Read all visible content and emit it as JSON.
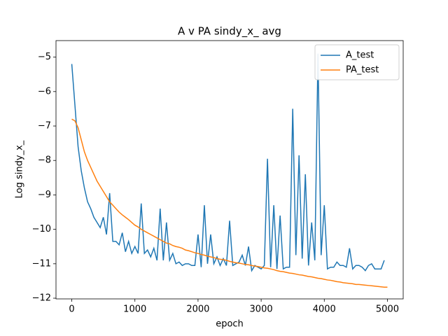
{
  "chart_data": {
    "type": "line",
    "title": "A v PA sindy_x_ avg",
    "xlabel": "epoch",
    "ylabel": "Log sindy_x_",
    "x": [
      0,
      50,
      100,
      150,
      200,
      250,
      300,
      350,
      400,
      450,
      500,
      550,
      600,
      650,
      700,
      750,
      800,
      850,
      900,
      950,
      1000,
      1050,
      1100,
      1150,
      1200,
      1250,
      1300,
      1350,
      1400,
      1450,
      1500,
      1550,
      1600,
      1650,
      1700,
      1750,
      1800,
      1850,
      1900,
      1950,
      2000,
      2050,
      2100,
      2150,
      2200,
      2250,
      2300,
      2350,
      2400,
      2450,
      2500,
      2550,
      2600,
      2650,
      2700,
      2750,
      2800,
      2850,
      2900,
      2950,
      3000,
      3050,
      3100,
      3150,
      3200,
      3250,
      3300,
      3350,
      3400,
      3450,
      3500,
      3550,
      3600,
      3650,
      3700,
      3750,
      3800,
      3850,
      3900,
      3950,
      4000,
      4050,
      4100,
      4150,
      4200,
      4250,
      4300,
      4350,
      4400,
      4450,
      4500,
      4550,
      4600,
      4650,
      4700,
      4750,
      4800,
      4850,
      4900,
      4950,
      5000
    ],
    "series": [
      {
        "name": "A_test",
        "color": "#1f77b4",
        "values": [
          -5.2,
          -6.4,
          -7.6,
          -8.3,
          -8.8,
          -9.2,
          -9.4,
          -9.65,
          -9.8,
          -9.95,
          -9.65,
          -10.15,
          -8.95,
          -10.35,
          -10.35,
          -10.45,
          -10.1,
          -10.65,
          -10.35,
          -10.7,
          -10.5,
          -10.7,
          -9.25,
          -10.7,
          -10.6,
          -10.8,
          -10.55,
          -10.9,
          -9.4,
          -10.9,
          -9.8,
          -10.9,
          -10.7,
          -11.0,
          -10.95,
          -11.05,
          -11.0,
          -11.0,
          -11.05,
          -11.05,
          -10.15,
          -11.1,
          -9.3,
          -11.0,
          -10.15,
          -11.0,
          -10.8,
          -11.05,
          -10.85,
          -11.05,
          -9.75,
          -11.05,
          -11.0,
          -10.95,
          -10.75,
          -11.05,
          -10.5,
          -11.2,
          -11.05,
          -11.1,
          -11.15,
          -11.05,
          -7.95,
          -11.1,
          -9.3,
          -11.15,
          -9.6,
          -11.15,
          -11.1,
          -11.1,
          -6.5,
          -10.75,
          -7.85,
          -10.85,
          -8.4,
          -11.05,
          -9.8,
          -10.9,
          -4.9,
          -10.75,
          -9.3,
          -11.15,
          -11.1,
          -11.1,
          -10.95,
          -11.05,
          -11.05,
          -11.1,
          -10.55,
          -11.15,
          -11.05,
          -11.05,
          -11.1,
          -11.2,
          -11.05,
          -11.0,
          -11.15,
          -11.15,
          -11.15,
          -10.9,
          null
        ]
      },
      {
        "name": "PA_test",
        "color": "#ff7f0e",
        "values": [
          -6.8,
          -6.85,
          -7.05,
          -7.4,
          -7.75,
          -8.0,
          -8.2,
          -8.4,
          -8.6,
          -8.75,
          -8.9,
          -9.05,
          -9.2,
          -9.3,
          -9.4,
          -9.5,
          -9.58,
          -9.65,
          -9.72,
          -9.8,
          -9.88,
          -9.93,
          -10.0,
          -10.05,
          -10.1,
          -10.15,
          -10.2,
          -10.25,
          -10.3,
          -10.35,
          -10.4,
          -10.42,
          -10.47,
          -10.5,
          -10.52,
          -10.55,
          -10.6,
          -10.62,
          -10.65,
          -10.68,
          -10.7,
          -10.73,
          -10.75,
          -10.78,
          -10.8,
          -10.82,
          -10.85,
          -10.87,
          -10.88,
          -10.9,
          -10.93,
          -10.95,
          -10.97,
          -10.98,
          -11.0,
          -11.02,
          -11.03,
          -11.05,
          -11.07,
          -11.08,
          -11.1,
          -11.12,
          -11.13,
          -11.15,
          -11.17,
          -11.2,
          -11.22,
          -11.23,
          -11.25,
          -11.27,
          -11.28,
          -11.3,
          -11.32,
          -11.33,
          -11.35,
          -11.37,
          -11.38,
          -11.4,
          -11.42,
          -11.43,
          -11.45,
          -11.47,
          -11.48,
          -11.5,
          -11.52,
          -11.53,
          -11.55,
          -11.56,
          -11.57,
          -11.58,
          -11.6,
          -11.6,
          -11.61,
          -11.62,
          -11.63,
          -11.64,
          -11.65,
          -11.66,
          -11.67,
          -11.68,
          -11.68
        ]
      }
    ],
    "xlim": [
      -250,
      5250
    ],
    "ylim": [
      -12.02,
      -4.52
    ],
    "xticks": [
      0,
      1000,
      2000,
      3000,
      4000,
      5000
    ],
    "yticks": [
      {
        "value": -12,
        "label": "−12"
      },
      {
        "value": -11,
        "label": "−11"
      },
      {
        "value": -10,
        "label": "−10"
      },
      {
        "value": -9,
        "label": "−9"
      },
      {
        "value": -8,
        "label": "−8"
      },
      {
        "value": -7,
        "label": "−7"
      },
      {
        "value": -6,
        "label": "−6"
      },
      {
        "value": -5,
        "label": "−5"
      }
    ],
    "legend": "upper right",
    "grid": false
  }
}
